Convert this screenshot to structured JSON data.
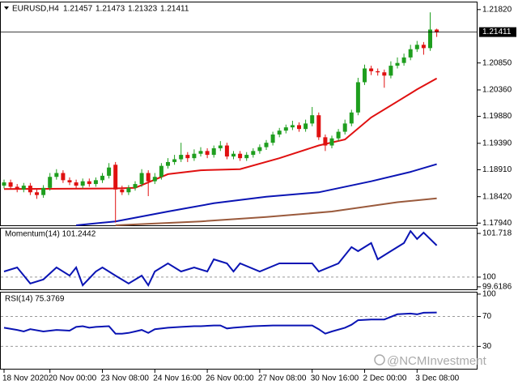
{
  "chart_data": {
    "type": "candlestick",
    "symbol": "EURUSD,H4",
    "categories": [
      "18 Nov 2020",
      null,
      null,
      null,
      null,
      null,
      null,
      "20 Nov 00:00",
      null,
      null,
      null,
      null,
      null,
      null,
      null,
      "23 Nov 08:00",
      null,
      null,
      null,
      null,
      null,
      null,
      null,
      "24 Nov 16:00",
      null,
      null,
      null,
      null,
      null,
      null,
      null,
      "26 Nov 00:00",
      null,
      null,
      null,
      null,
      null,
      null,
      null,
      "27 Nov 08:00",
      null,
      null,
      null,
      null,
      null,
      null,
      null,
      "30 Nov 16:00",
      null,
      null,
      null,
      null,
      null,
      null,
      null,
      "2 Dec 00:00",
      null,
      null,
      null,
      null,
      null,
      null,
      null,
      "3 Dec 08:00",
      null,
      null,
      null
    ],
    "opens": [
      1.1862,
      1.1868,
      1.186,
      1.1855,
      1.1862,
      1.185,
      1.1845,
      1.1858,
      1.1878,
      1.1885,
      1.1872,
      1.1868,
      1.1862,
      1.187,
      1.1865,
      1.1872,
      1.188,
      1.19,
      1.1855,
      1.185,
      1.1858,
      1.1865,
      1.1885,
      1.187,
      1.1878,
      1.1898,
      1.1905,
      1.191,
      1.1918,
      1.1912,
      1.192,
      1.1925,
      1.1918,
      1.193,
      1.1935,
      1.1915,
      1.192,
      1.1912,
      1.1918,
      1.1925,
      1.1932,
      1.194,
      1.1955,
      1.1962,
      1.1968,
      1.1972,
      1.1965,
      1.1975,
      1.199,
      1.195,
      1.1935,
      1.1948,
      1.196,
      1.1975,
      1.1995,
      1.205,
      1.2075,
      1.207,
      1.2068,
      1.2062,
      1.208,
      1.2085,
      1.2095,
      1.211,
      1.2118,
      1.2112,
      1.21457
    ],
    "highs": [
      1.1873,
      1.1873,
      1.1865,
      1.1867,
      1.1867,
      1.1855,
      1.1863,
      1.1885,
      1.1892,
      1.189,
      1.1877,
      1.1873,
      1.1875,
      1.1875,
      1.1877,
      1.1885,
      1.1903,
      1.1905,
      1.1862,
      1.1863,
      1.187,
      1.1892,
      1.189,
      1.1885,
      1.1903,
      1.1912,
      1.1918,
      1.194,
      1.1923,
      1.1928,
      1.1932,
      1.193,
      1.1935,
      1.1943,
      1.194,
      1.1925,
      1.1925,
      1.1923,
      1.193,
      1.1937,
      1.1945,
      1.196,
      1.1967,
      1.1973,
      1.198,
      1.1977,
      1.1982,
      1.2005,
      1.1995,
      1.1955,
      1.1953,
      1.1965,
      1.1982,
      1.2,
      1.2058,
      1.2082,
      1.208,
      1.2075,
      1.2073,
      1.2088,
      1.2095,
      1.2102,
      1.2118,
      1.2125,
      1.2123,
      1.2177,
      1.21473
    ],
    "lows": [
      1.1857,
      1.1855,
      1.185,
      1.185,
      1.1845,
      1.1838,
      1.184,
      1.1853,
      1.1873,
      1.1867,
      1.1863,
      1.1857,
      1.1857,
      1.186,
      1.186,
      1.1867,
      1.1875,
      1.1795,
      1.1845,
      1.1845,
      1.1853,
      1.186,
      1.1843,
      1.1865,
      1.1873,
      1.1893,
      1.19,
      1.1905,
      1.1905,
      1.1907,
      1.1915,
      1.1912,
      1.1913,
      1.1925,
      1.191,
      1.191,
      1.1907,
      1.1907,
      1.1913,
      1.192,
      1.1927,
      1.1935,
      1.195,
      1.1957,
      1.1963,
      1.196,
      1.196,
      1.197,
      1.1945,
      1.1925,
      1.193,
      1.1943,
      1.1955,
      1.197,
      1.199,
      1.2045,
      1.2063,
      1.2062,
      1.204,
      1.2057,
      1.2075,
      1.208,
      1.209,
      1.2105,
      1.21,
      1.2107,
      1.21323
    ],
    "closes": [
      1.1868,
      1.186,
      1.1855,
      1.1862,
      1.185,
      1.1845,
      1.1858,
      1.1878,
      1.1885,
      1.1872,
      1.1868,
      1.1862,
      1.187,
      1.1865,
      1.1872,
      1.188,
      1.1895,
      1.1855,
      1.185,
      1.1858,
      1.1865,
      1.1885,
      1.187,
      1.1878,
      1.1898,
      1.1905,
      1.191,
      1.1918,
      1.1912,
      1.192,
      1.1925,
      1.1918,
      1.193,
      1.1935,
      1.1915,
      1.192,
      1.1912,
      1.1918,
      1.1925,
      1.1932,
      1.194,
      1.1955,
      1.1962,
      1.1968,
      1.1972,
      1.1965,
      1.1975,
      1.199,
      1.195,
      1.1935,
      1.1948,
      1.196,
      1.1975,
      1.1995,
      1.205,
      1.2075,
      1.207,
      1.2068,
      1.2062,
      1.208,
      1.2085,
      1.2095,
      1.211,
      1.2118,
      1.2112,
      1.21457,
      1.21411
    ],
    "up_color": "#1e9e1e",
    "down_color": "#e01010",
    "ylim": [
      1.179,
      1.2195
    ],
    "yticks": [
      {
        "value": 1.2182,
        "label": "1.21820"
      },
      {
        "value": 1.2085,
        "label": "1.20850"
      },
      {
        "value": 1.2036,
        "label": "1.20360"
      },
      {
        "value": 1.1988,
        "label": "1.19880"
      },
      {
        "value": 1.1939,
        "label": "1.19390"
      },
      {
        "value": 1.1891,
        "label": "1.18910"
      },
      {
        "value": 1.1842,
        "label": "1.18420"
      },
      {
        "value": 1.1794,
        "label": "1.17940"
      }
    ],
    "overlays": [
      {
        "color": "#e01010",
        "x": [
          0,
          17,
          20,
          25,
          30,
          36,
          42,
          48,
          52,
          56,
          60,
          63,
          66
        ],
        "values": [
          1.1856,
          1.1857,
          1.1858,
          1.1883,
          1.189,
          1.1892,
          1.1912,
          1.1935,
          1.1946,
          1.1986,
          1.2015,
          1.2037,
          1.2057
        ]
      },
      {
        "color": "#0a14b4",
        "x": [
          11,
          17,
          25,
          32,
          40,
          48,
          56,
          62,
          66
        ],
        "values": [
          1.179,
          1.1797,
          1.1815,
          1.183,
          1.1842,
          1.185,
          1.187,
          1.1887,
          1.1901
        ]
      },
      {
        "color": "#9a5a3c",
        "x": [
          17,
          30,
          40,
          50,
          60,
          66
        ],
        "values": [
          1.179,
          1.1797,
          1.1805,
          1.1815,
          1.1832,
          1.1839
        ]
      }
    ],
    "indicators": [
      {
        "type": "line",
        "title": "Momentum(14) 101.2442",
        "color": "#0a14b4",
        "ylim": [
          99.52,
          101.91
        ],
        "yticks": [
          101.718,
          100,
          99.6186
        ],
        "levels": [
          100
        ],
        "x": [
          0,
          2,
          4,
          6,
          8,
          10,
          11,
          12,
          14,
          15,
          17,
          19,
          21,
          22,
          23,
          25,
          27,
          29,
          31,
          32,
          34,
          35,
          36,
          39,
          42,
          47,
          48,
          51,
          53,
          54,
          56,
          57,
          59,
          61,
          62,
          63,
          64,
          66
        ],
        "values": [
          100.22,
          100.38,
          99.75,
          99.91,
          100.38,
          100.06,
          100.38,
          99.68,
          100.22,
          100.38,
          100.06,
          99.75,
          100.06,
          99.68,
          100.22,
          100.54,
          100.22,
          100.38,
          100.22,
          100.7,
          100.54,
          100.22,
          100.54,
          100.22,
          100.54,
          100.54,
          100.22,
          100.54,
          101.18,
          101.02,
          101.34,
          100.7,
          101.02,
          101.34,
          101.81,
          101.5,
          101.75,
          101.2442
        ]
      },
      {
        "type": "line",
        "title": "RSI(14) 75.3769",
        "color": "#0a14b4",
        "ylim": [
          0,
          101
        ],
        "yticks": [
          100,
          70,
          30
        ],
        "levels": [
          70,
          30
        ],
        "x": [
          0,
          2,
          3,
          4,
          6,
          8,
          10,
          11,
          12,
          13,
          14,
          16,
          17,
          18,
          19,
          20,
          21,
          22,
          23,
          25,
          27,
          29,
          30,
          32,
          33,
          34,
          35,
          38,
          41,
          47,
          48,
          49,
          50,
          52,
          53,
          54,
          56,
          58,
          60,
          62,
          63,
          64,
          66
        ],
        "values": [
          55,
          52,
          50,
          53,
          50,
          52,
          51,
          56,
          57,
          55,
          56,
          57,
          47,
          47,
          48,
          50,
          52,
          48,
          53,
          55,
          56,
          57,
          57,
          58,
          58,
          54,
          55,
          57,
          58,
          58,
          53,
          47,
          50,
          55,
          59,
          65,
          66,
          66,
          73,
          74,
          73,
          75,
          75.3769
        ]
      }
    ],
    "watermark": "@NCMInvestment"
  }
}
